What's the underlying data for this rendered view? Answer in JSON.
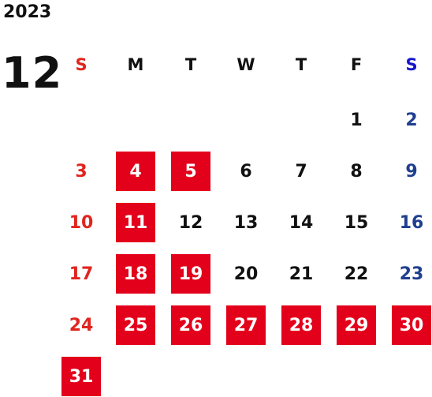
{
  "calendar": {
    "year": "2023",
    "month": "12",
    "weekdays": [
      "S",
      "M",
      "T",
      "W",
      "T",
      "F",
      "S"
    ],
    "first_weekday_index": 5,
    "days_in_month": 31,
    "highlighted_days": [
      4,
      5,
      11,
      18,
      19,
      25,
      26,
      27,
      28,
      29,
      30,
      31
    ]
  },
  "colors": {
    "text": "#111111",
    "sunday": "#e0251f",
    "saturday": "#1f3f8f",
    "saturday_header": "#1515cc",
    "highlight_bg": "#e3001b",
    "highlight_text": "#ffffff"
  }
}
